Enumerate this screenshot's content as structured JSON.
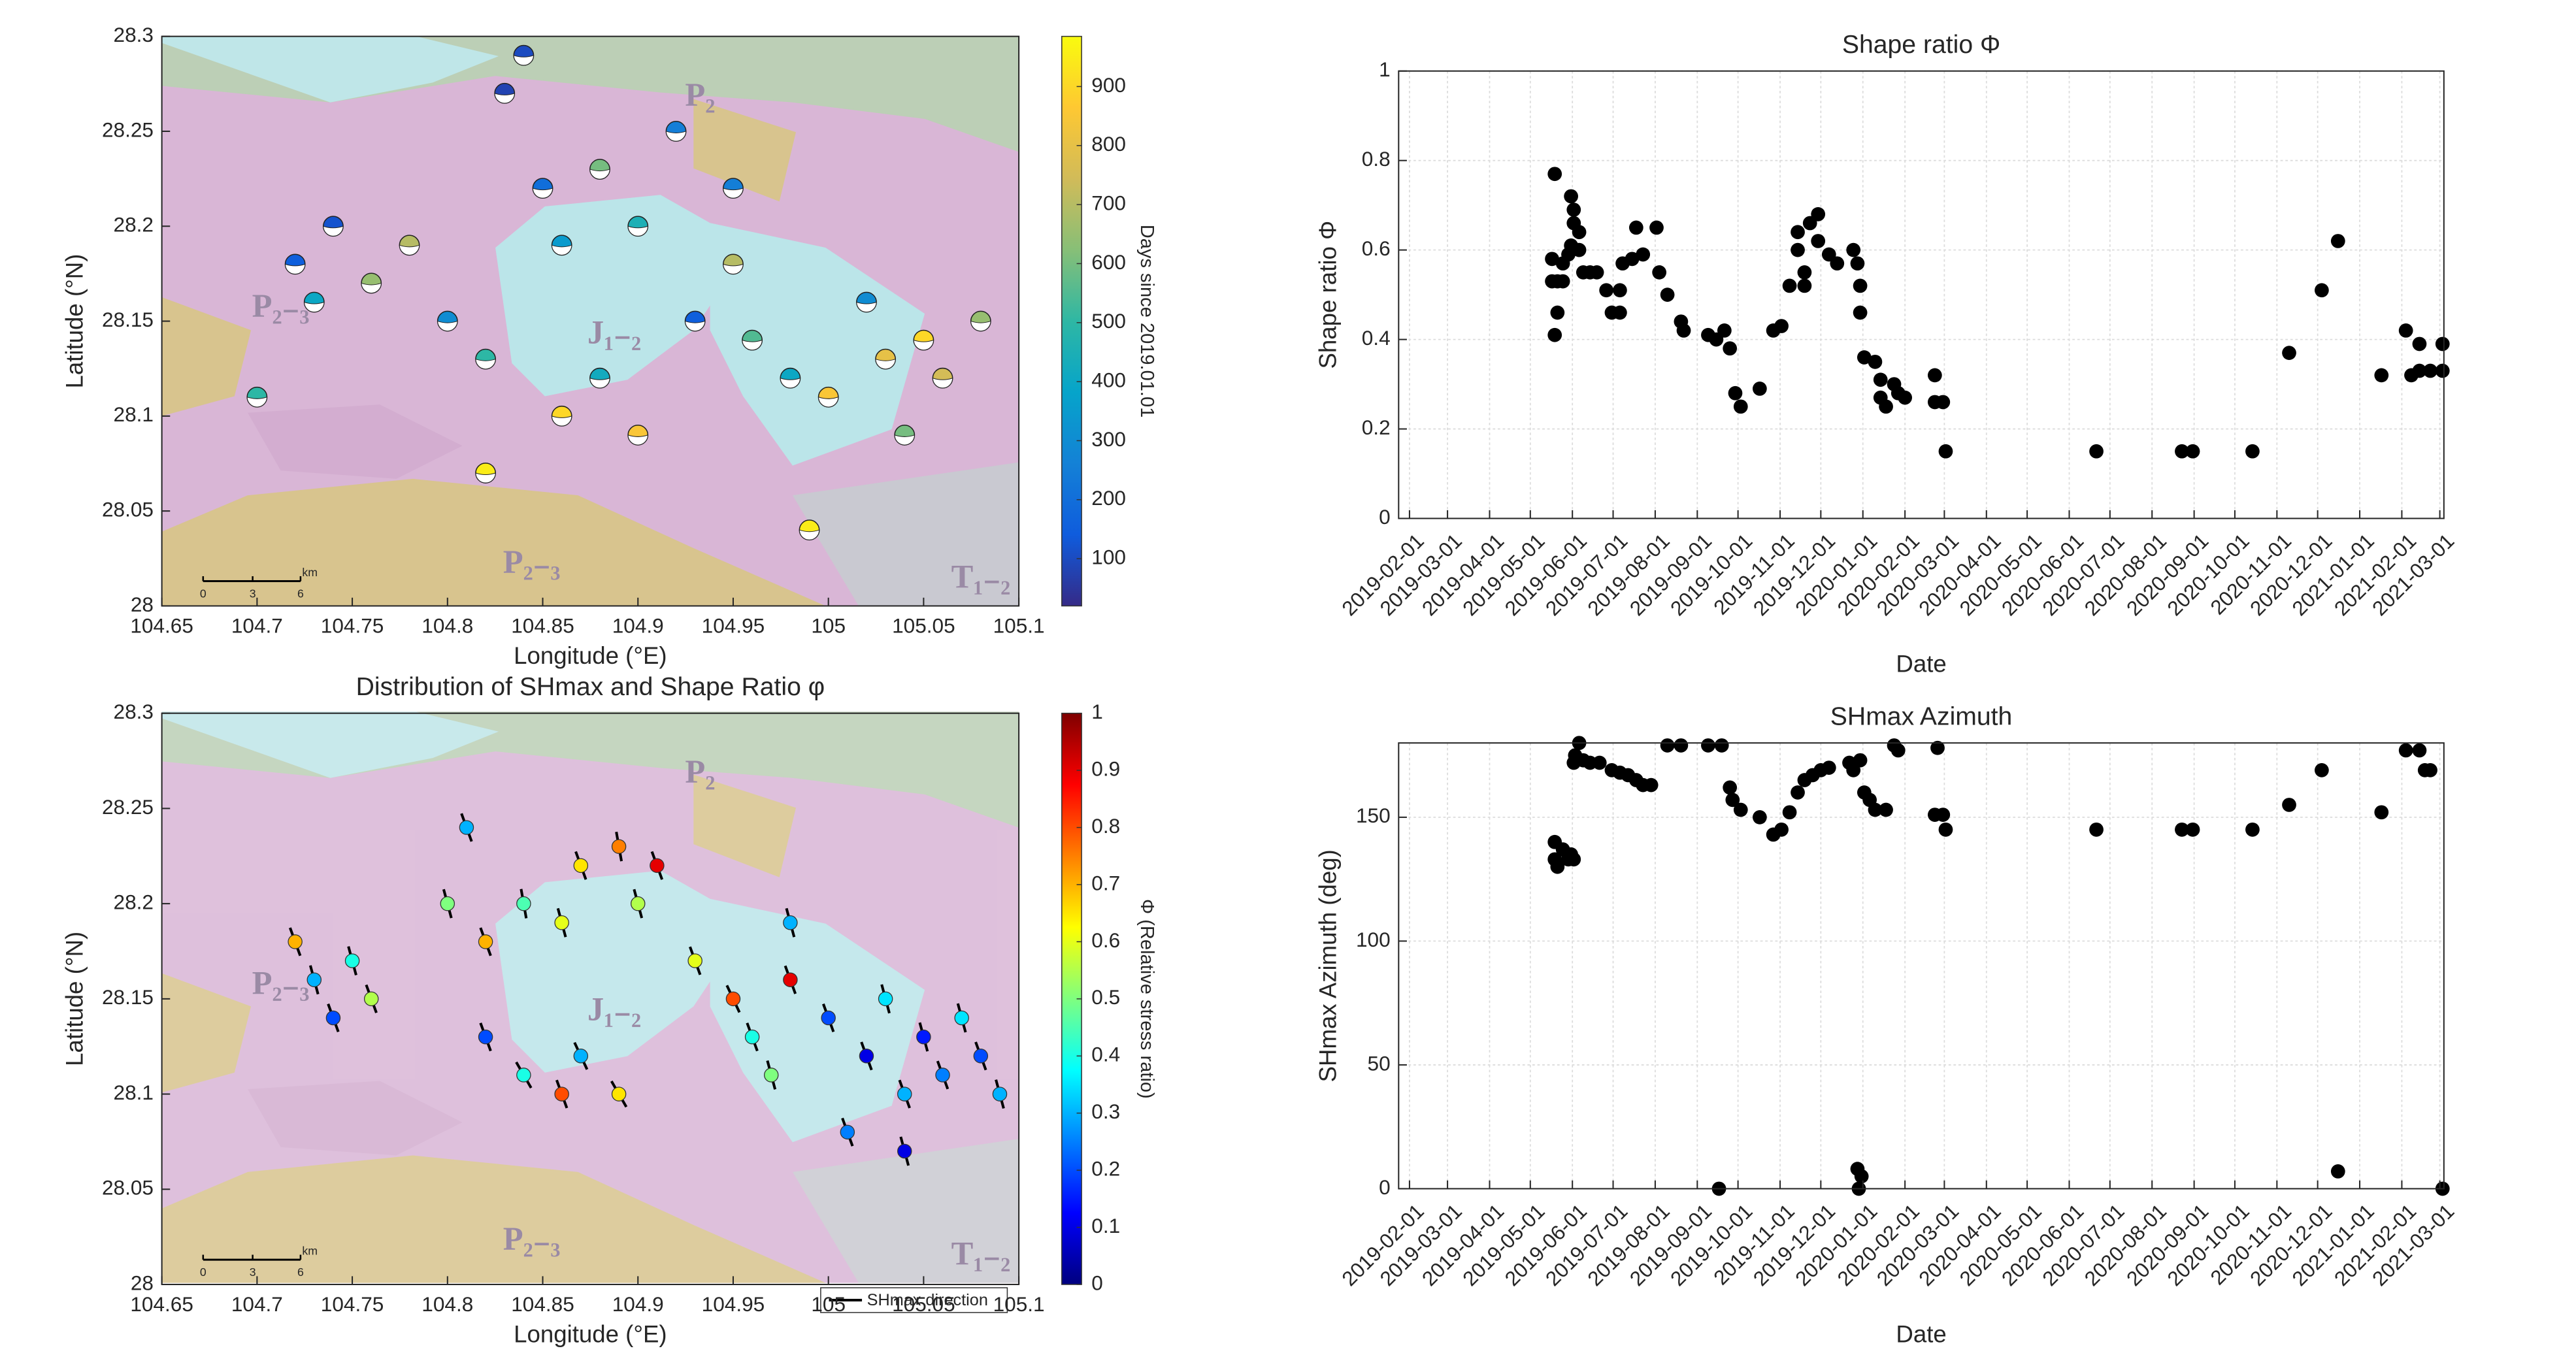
{
  "chart_data": [
    {
      "type": "map",
      "x_label": "Longitude (°E)",
      "y_label": "Latitude (°N)",
      "xlim": [
        104.65,
        105.1
      ],
      "xticks": [
        104.65,
        104.7,
        104.75,
        104.8,
        104.85,
        104.9,
        104.95,
        105,
        105.05,
        105.1
      ],
      "ylim": [
        28,
        28.3
      ],
      "yticks": [
        28,
        28.05,
        28.1,
        28.15,
        28.2,
        28.25,
        28.3
      ],
      "map_labels": [
        "P₂₋₃",
        "J₁₋₂",
        "P₂₋₃",
        "T₁₋₂",
        "P₂"
      ],
      "scale_bar": {
        "ticks": [
          0,
          3,
          6
        ],
        "unit": "km"
      },
      "x": [
        104.72,
        104.73,
        104.74,
        104.76,
        104.78,
        104.8,
        104.82,
        104.83,
        104.85,
        104.86,
        104.88,
        104.9,
        104.92,
        104.93,
        104.95,
        104.96,
        104.98,
        105,
        105.02,
        105.03,
        105.05,
        105.06,
        105.08,
        104.86,
        104.9,
        104.82,
        104.99,
        104.7,
        104.84,
        104.88,
        105.04,
        104.95
      ],
      "y": [
        28.18,
        28.16,
        28.2,
        28.17,
        28.19,
        28.15,
        28.13,
        28.27,
        28.22,
        28.19,
        28.23,
        28.2,
        28.25,
        28.15,
        28.18,
        28.14,
        28.12,
        28.11,
        28.16,
        28.13,
        28.14,
        28.12,
        28.15,
        28.1,
        28.09,
        28.07,
        28.04,
        28.11,
        28.29,
        28.12,
        28.09,
        28.22
      ],
      "c": [
        150,
        400,
        120,
        650,
        700,
        300,
        500,
        80,
        200,
        350,
        600,
        450,
        250,
        150,
        700,
        550,
        400,
        850,
        300,
        800,
        900,
        750,
        650,
        900,
        850,
        950,
        950,
        500,
        100,
        420,
        600,
        250
      ],
      "colorbar": {
        "label": "Days since 2019.01.01",
        "lim": [
          20,
          985
        ],
        "ticks": [
          100,
          200,
          300,
          400,
          500,
          600,
          700,
          800,
          900
        ],
        "colormap": [
          "#352a87",
          "#0f5cdd",
          "#1481d6",
          "#06a4ca",
          "#2eb7a4",
          "#87bf77",
          "#d1bb59",
          "#fec832",
          "#f9fb0e"
        ]
      }
    },
    {
      "type": "map",
      "title": "Distribution of SHmax and Shape Ratio φ",
      "x_label": "Longitude (°E)",
      "y_label": "Latitude (°N)",
      "xlim": [
        104.65,
        105.1
      ],
      "xticks": [
        104.65,
        104.7,
        104.75,
        104.8,
        104.85,
        104.9,
        104.95,
        105,
        105.05,
        105.1
      ],
      "ylim": [
        28,
        28.3
      ],
      "yticks": [
        28,
        28.05,
        28.1,
        28.15,
        28.2,
        28.25,
        28.3
      ],
      "map_labels": [
        "P₂₋₃",
        "J₁₋₂",
        "P₂₋₃",
        "T₁₋₂",
        "P₂"
      ],
      "scale_bar": {
        "ticks": [
          0,
          3,
          6
        ],
        "unit": "km"
      },
      "legend": "SHmax direction",
      "x": [
        104.72,
        104.73,
        104.74,
        104.75,
        104.76,
        104.81,
        104.8,
        104.82,
        104.84,
        104.86,
        104.87,
        104.89,
        104.91,
        104.9,
        104.82,
        104.84,
        104.86,
        104.87,
        104.89,
        104.93,
        104.95,
        104.96,
        104.97,
        104.98,
        104.98,
        105.0,
        105.02,
        105.03,
        105.04,
        105.05,
        105.06,
        105.07,
        105.08,
        105.09,
        105.01,
        105.04
      ],
      "y": [
        28.18,
        28.16,
        28.14,
        28.17,
        28.15,
        28.24,
        28.2,
        28.18,
        28.2,
        28.19,
        28.22,
        28.23,
        28.22,
        28.2,
        28.13,
        28.11,
        28.1,
        28.12,
        28.1,
        28.17,
        28.15,
        28.13,
        28.11,
        28.16,
        28.19,
        28.14,
        28.12,
        28.15,
        28.1,
        28.13,
        28.11,
        28.14,
        28.12,
        28.1,
        28.08,
        28.07
      ],
      "c": [
        0.7,
        0.3,
        0.2,
        0.4,
        0.55,
        0.3,
        0.5,
        0.7,
        0.45,
        0.6,
        0.65,
        0.75,
        0.9,
        0.55,
        0.2,
        0.4,
        0.8,
        0.3,
        0.65,
        0.6,
        0.8,
        0.4,
        0.5,
        0.9,
        0.3,
        0.2,
        0.1,
        0.35,
        0.3,
        0.15,
        0.25,
        0.35,
        0.2,
        0.3,
        0.25,
        0.1
      ],
      "azimuth": [
        160,
        165,
        160,
        165,
        160,
        160,
        165,
        160,
        170,
        165,
        160,
        170,
        160,
        165,
        160,
        150,
        160,
        155,
        150,
        160,
        155,
        160,
        165,
        160,
        165,
        160,
        160,
        165,
        160,
        165,
        160,
        165,
        160,
        165,
        160,
        165
      ],
      "colorbar": {
        "label": "Φ (Relative stress ratio)",
        "lim": [
          0,
          1
        ],
        "ticks": [
          0,
          0.1,
          0.2,
          0.3,
          0.4,
          0.5,
          0.6,
          0.7,
          0.8,
          0.9,
          1
        ],
        "colormap": [
          "#00007f",
          "#0000ff",
          "#007fff",
          "#00ffff",
          "#7fff7f",
          "#ffff00",
          "#ff7f00",
          "#ff0000",
          "#7f0000"
        ]
      }
    },
    {
      "type": "scatter",
      "title": "Shape ratio Φ",
      "x_label": "Date",
      "y_label": "Shape ratio Φ",
      "color": "#000000",
      "grid": true,
      "xlim": [
        "2019-01-24",
        "2021-03-04"
      ],
      "xticks": [
        "2019-02-01",
        "2019-03-01",
        "2019-04-01",
        "2019-05-01",
        "2019-06-01",
        "2019-07-01",
        "2019-08-01",
        "2019-09-01",
        "2019-10-01",
        "2019-11-01",
        "2019-12-01",
        "2020-01-01",
        "2020-02-01",
        "2020-03-01",
        "2020-04-01",
        "2020-05-01",
        "2020-06-01",
        "2020-07-01",
        "2020-08-01",
        "2020-09-01",
        "2020-10-01",
        "2020-11-01",
        "2020-12-01",
        "2021-01-01",
        "2021-02-01",
        "2021-03-01"
      ],
      "ylim": [
        0,
        1
      ],
      "yticks": [
        0,
        0.2,
        0.4,
        0.6,
        0.8,
        1
      ],
      "x": [
        "2019-05-17",
        "2019-05-17",
        "2019-05-19",
        "2019-05-19",
        "2019-05-21",
        "2019-05-21",
        "2019-05-25",
        "2019-05-25",
        "2019-05-29",
        "2019-05-31",
        "2019-05-31",
        "2019-06-02",
        "2019-06-02",
        "2019-06-06",
        "2019-06-06",
        "2019-06-09",
        "2019-06-14",
        "2019-06-19",
        "2019-06-26",
        "2019-06-30",
        "2019-07-06",
        "2019-07-06",
        "2019-07-08",
        "2019-07-15",
        "2019-07-18",
        "2019-07-23",
        "2019-08-02",
        "2019-08-04",
        "2019-08-10",
        "2019-08-20",
        "2019-08-22",
        "2019-09-09",
        "2019-09-15",
        "2019-09-21",
        "2019-09-25",
        "2019-09-29",
        "2019-10-03",
        "2019-10-17",
        "2019-10-27",
        "2019-11-02",
        "2019-11-08",
        "2019-11-14",
        "2019-11-14",
        "2019-11-19",
        "2019-11-19",
        "2019-11-23",
        "2019-11-29",
        "2019-11-29",
        "2019-12-07",
        "2019-12-13",
        "2019-12-25",
        "2019-12-28",
        "2019-12-30",
        "2019-12-30",
        "2020-01-02",
        "2020-01-10",
        "2020-01-14",
        "2020-01-14",
        "2020-01-18",
        "2020-01-24",
        "2020-01-27",
        "2020-02-01",
        "2020-02-23",
        "2020-02-23",
        "2020-02-29",
        "2020-03-02",
        "2020-06-21",
        "2020-08-23",
        "2020-08-31",
        "2020-10-14",
        "2020-11-10",
        "2020-12-04",
        "2020-12-16",
        "2021-01-17",
        "2021-02-04",
        "2021-02-08",
        "2021-02-14",
        "2021-02-14",
        "2021-02-22",
        "2021-03-03",
        "2021-03-03"
      ],
      "values": [
        0.58,
        0.53,
        0.77,
        0.41,
        0.46,
        0.53,
        0.53,
        0.57,
        0.59,
        0.72,
        0.61,
        0.69,
        0.66,
        0.64,
        0.6,
        0.55,
        0.55,
        0.55,
        0.51,
        0.46,
        0.46,
        0.51,
        0.57,
        0.58,
        0.65,
        0.59,
        0.65,
        0.55,
        0.5,
        0.44,
        0.42,
        0.41,
        0.4,
        0.42,
        0.38,
        0.28,
        0.25,
        0.29,
        0.42,
        0.43,
        0.52,
        0.64,
        0.6,
        0.55,
        0.52,
        0.66,
        0.68,
        0.62,
        0.59,
        0.57,
        0.6,
        0.57,
        0.52,
        0.46,
        0.36,
        0.35,
        0.31,
        0.27,
        0.25,
        0.3,
        0.28,
        0.27,
        0.32,
        0.26,
        0.26,
        0.15,
        0.15,
        0.15,
        0.15,
        0.15,
        0.37,
        0.51,
        0.62,
        0.32,
        0.42,
        0.32,
        0.39,
        0.33,
        0.33,
        0.33,
        0.39
      ]
    },
    {
      "type": "scatter",
      "title": "SHmax Azimuth",
      "x_label": "Date",
      "y_label": "SHmax Azimuth (deg)",
      "color": "#000000",
      "grid": true,
      "xlim": [
        "2019-01-24",
        "2021-03-04"
      ],
      "xticks": [
        "2019-02-01",
        "2019-03-01",
        "2019-04-01",
        "2019-05-01",
        "2019-06-01",
        "2019-07-01",
        "2019-08-01",
        "2019-09-01",
        "2019-10-01",
        "2019-11-01",
        "2019-12-01",
        "2020-01-01",
        "2020-02-01",
        "2020-03-01",
        "2020-04-01",
        "2020-05-01",
        "2020-06-01",
        "2020-07-01",
        "2020-08-01",
        "2020-09-01",
        "2020-10-01",
        "2020-11-01",
        "2020-12-01",
        "2021-01-01",
        "2021-02-01",
        "2021-03-01"
      ],
      "ylim": [
        0,
        180
      ],
      "yticks": [
        0,
        50,
        100,
        150
      ],
      "x": [
        "2019-05-19",
        "2019-05-19",
        "2019-05-21",
        "2019-05-25",
        "2019-05-29",
        "2019-05-29",
        "2019-05-31",
        "2019-06-02",
        "2019-06-02",
        "2019-06-03",
        "2019-06-06",
        "2019-06-09",
        "2019-06-14",
        "2019-06-21",
        "2019-06-30",
        "2019-07-06",
        "2019-07-12",
        "2019-07-18",
        "2019-07-23",
        "2019-07-29",
        "2019-08-10",
        "2019-08-20",
        "2019-09-09",
        "2019-09-17",
        "2019-09-19",
        "2019-09-25",
        "2019-09-27",
        "2019-10-03",
        "2019-10-17",
        "2019-10-27",
        "2019-11-02",
        "2019-11-08",
        "2019-11-14",
        "2019-11-19",
        "2019-11-25",
        "2019-12-01",
        "2019-12-07",
        "2019-12-22",
        "2019-12-25",
        "2019-12-28",
        "2019-12-29",
        "2019-12-30",
        "2019-12-31",
        "2020-01-02",
        "2020-01-06",
        "2020-01-10",
        "2020-01-18",
        "2020-01-24",
        "2020-01-27",
        "2020-02-23",
        "2020-02-25",
        "2020-02-29",
        "2020-03-02",
        "2020-06-21",
        "2020-08-23",
        "2020-08-31",
        "2020-10-14",
        "2020-11-10",
        "2020-12-04",
        "2020-12-16",
        "2021-01-17",
        "2021-02-04",
        "2021-02-14",
        "2021-02-18",
        "2021-02-22",
        "2021-03-03"
      ],
      "values": [
        140,
        133,
        130,
        137,
        133,
        135,
        135,
        172,
        133,
        175,
        180,
        173,
        172,
        172,
        169,
        168,
        167,
        165,
        163,
        163,
        179,
        179,
        179,
        0,
        179,
        162,
        157,
        153,
        150,
        143,
        145,
        152,
        160,
        165,
        167,
        169,
        170,
        172,
        169,
        8,
        0,
        173,
        5,
        160,
        157,
        153,
        153,
        179,
        177,
        151,
        178,
        151,
        145,
        145,
        145,
        145,
        145,
        155,
        169,
        7,
        152,
        177,
        177,
        169,
        169,
        0
      ]
    }
  ]
}
